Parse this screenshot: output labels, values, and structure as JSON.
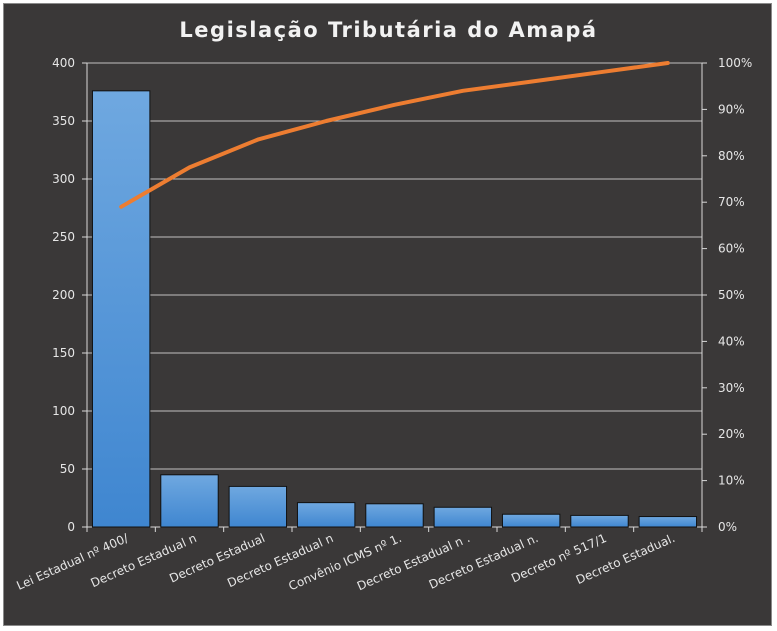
{
  "chart_data": {
    "type": "bar",
    "title": "Legislação Tributária do Amapá",
    "categories": [
      "Lei Estadual nº 400/",
      "Decreto Estadual n",
      "Decreto Estadual",
      "Decreto Estadual n",
      "Convênio ICMS nº 1.",
      "Decreto Estadual n .",
      "Decreto Estadual n.",
      "Decreto nº 517/1",
      "Decreto Estadual."
    ],
    "series": [
      {
        "type": "bar",
        "values": [
          376,
          45,
          35,
          21,
          20,
          17,
          11,
          10,
          9
        ]
      },
      {
        "type": "line",
        "axis": "secondary",
        "values": [
          0.69,
          0.775,
          0.835,
          0.875,
          0.91,
          0.94,
          0.96,
          0.98,
          1.0
        ]
      }
    ],
    "yaxis_left": {
      "min": 0,
      "max": 400,
      "ticks": [
        "0",
        "50",
        "100",
        "150",
        "200",
        "250",
        "300",
        "350",
        "400"
      ]
    },
    "yaxis_right": {
      "min": 0,
      "max": 1,
      "ticks": [
        "0%",
        "10%",
        "20%",
        "30%",
        "40%",
        "50%",
        "60%",
        "70%",
        "80%",
        "90%",
        "100%"
      ]
    },
    "grid": true,
    "colors": {
      "background": "#3a3838",
      "bar": "#5b9bd5",
      "line": "#ed7d31",
      "grid": "#d9d9d9",
      "text": "#e6e6e6"
    }
  }
}
